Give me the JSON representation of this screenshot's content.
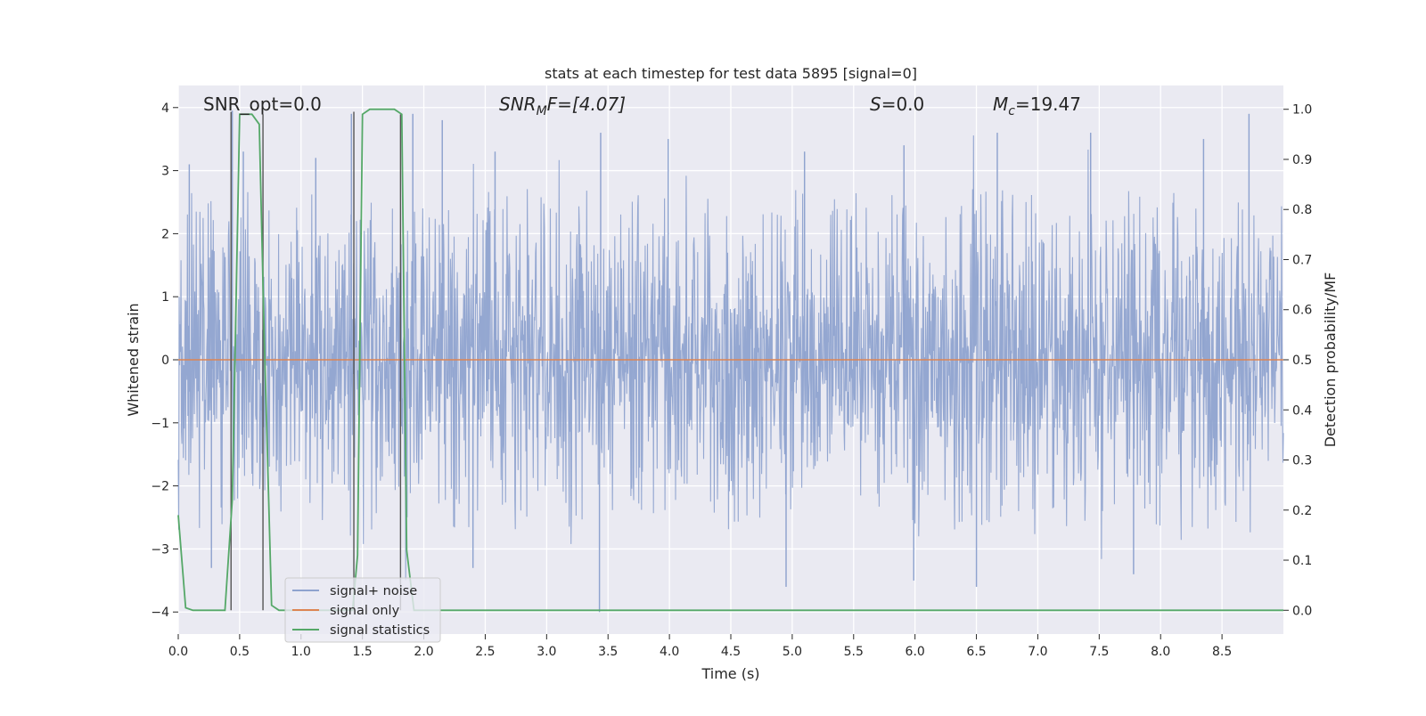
{
  "chart_data": {
    "type": "line",
    "title": "stats at each timestep for test data 5895 [signal=0]",
    "xlabel": "Time (s)",
    "ylabel_left": "Whitened strain",
    "ylabel_right": "Detection probability/MF",
    "xlim": [
      0,
      9.0
    ],
    "ylim_left": [
      -4.35,
      4.35
    ],
    "ylim_right": [
      -0.0475,
      1.0475
    ],
    "x_ticks": [
      0.0,
      0.5,
      1.0,
      1.5,
      2.0,
      2.5,
      3.0,
      3.5,
      4.0,
      4.5,
      5.0,
      5.5,
      6.0,
      6.5,
      7.0,
      7.5,
      8.0,
      8.5
    ],
    "x_tick_labels": [
      "0.0",
      "0.5",
      "1.0",
      "1.5",
      "2.0",
      "2.5",
      "3.0",
      "3.5",
      "4.0",
      "4.5",
      "5.0",
      "5.5",
      "6.0",
      "6.5",
      "7.0",
      "7.5",
      "8.0",
      "8.5"
    ],
    "y_ticks_left": [
      -4,
      -3,
      -2,
      -1,
      0,
      1,
      2,
      3,
      4
    ],
    "y_tick_labels_left": [
      "−4",
      "−3",
      "−2",
      "−1",
      "0",
      "1",
      "2",
      "3",
      "4"
    ],
    "y_ticks_right": [
      0.0,
      0.1,
      0.2,
      0.3,
      0.4,
      0.5,
      0.6,
      0.7,
      0.8,
      0.9,
      1.0
    ],
    "y_tick_labels_right": [
      "0.0",
      "0.1",
      "0.2",
      "0.3",
      "0.4",
      "0.5",
      "0.6",
      "0.7",
      "0.8",
      "0.9",
      "1.0"
    ],
    "grid": true,
    "legend_position": "lower-left",
    "annotations": {
      "snr_opt": "SNR_opt=0.0",
      "snr_mf_main": "SNR",
      "snr_mf_sub": "M",
      "snr_mf_rest": "F=[4.07]",
      "s_main": "S",
      "s_rest": "=0.0",
      "mc_main": "M",
      "mc_sub": "c",
      "mc_rest": "=19.47"
    },
    "series": [
      {
        "name": "signal+ noise",
        "axis": "left",
        "color": "#8fa3cf",
        "style": "noise",
        "amplitude_typical": 1.5,
        "amplitude_max": 4.0,
        "peaks": [
          {
            "x": 0.09,
            "y": 3.1
          },
          {
            "x": 0.44,
            "y": 3.95
          },
          {
            "x": 0.53,
            "y": 3.3
          },
          {
            "x": 1.12,
            "y": 3.2
          },
          {
            "x": 1.41,
            "y": 3.9
          },
          {
            "x": 1.91,
            "y": 3.9
          },
          {
            "x": 2.15,
            "y": 3.8
          },
          {
            "x": 2.58,
            "y": 3.3
          },
          {
            "x": 3.44,
            "y": 3.6
          },
          {
            "x": 3.99,
            "y": 3.5
          },
          {
            "x": 5.1,
            "y": 3.3
          },
          {
            "x": 5.91,
            "y": 3.4
          },
          {
            "x": 6.67,
            "y": 3.6
          },
          {
            "x": 7.43,
            "y": 3.6
          },
          {
            "x": 8.35,
            "y": 3.5
          },
          {
            "x": 8.72,
            "y": 3.9
          },
          {
            "x": 0.27,
            "y": -3.3
          },
          {
            "x": 2.4,
            "y": -3.3
          },
          {
            "x": 3.43,
            "y": -4.0
          },
          {
            "x": 4.95,
            "y": -3.6
          },
          {
            "x": 5.99,
            "y": -3.5
          },
          {
            "x": 6.5,
            "y": -3.6
          },
          {
            "x": 7.78,
            "y": -3.4
          }
        ]
      },
      {
        "name": "signal only",
        "axis": "left",
        "color": "#dd8452",
        "x": [
          0.0,
          9.0
        ],
        "y": [
          0.0,
          0.0
        ]
      },
      {
        "name": "signal statistics",
        "axis": "right",
        "color": "#55a868",
        "x": [
          0.0,
          0.06,
          0.12,
          0.38,
          0.44,
          0.5,
          0.54,
          0.6,
          0.66,
          0.7,
          0.76,
          0.82,
          1.42,
          1.46,
          1.5,
          1.56,
          1.76,
          1.82,
          1.86,
          1.92,
          2.0,
          9.0
        ],
        "y": [
          0.19,
          0.005,
          0.0,
          0.0,
          0.22,
          0.99,
          0.99,
          0.99,
          0.97,
          0.55,
          0.01,
          0.0,
          0.0,
          0.11,
          0.99,
          1.0,
          1.0,
          0.99,
          0.12,
          0.0,
          0.0,
          0.0
        ]
      }
    ],
    "vertical_markers": [
      {
        "x": 0.43,
        "y_top": 0.995
      },
      {
        "x": 0.69,
        "y_top": 0.99
      },
      {
        "x": 1.43,
        "y_top": 0.995
      },
      {
        "x": 1.81,
        "y_top": 0.99
      }
    ]
  }
}
